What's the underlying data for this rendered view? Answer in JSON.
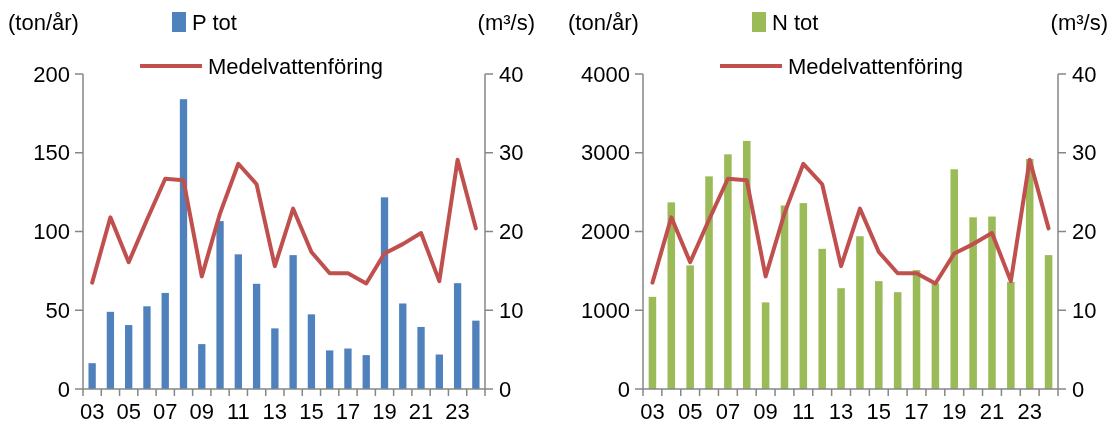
{
  "chart_data": [
    {
      "type": "bar",
      "ylabel": "(ton/år)",
      "y2label": "(m³/s)",
      "legend": "top",
      "categories": [
        "03",
        null,
        "05",
        null,
        "07",
        null,
        "09",
        null,
        "11",
        null,
        "13",
        null,
        "15",
        null,
        "17",
        null,
        "19",
        null,
        "21",
        null,
        "23",
        null
      ],
      "ylim": [
        0,
        200
      ],
      "yticks": [
        0,
        50,
        100,
        150,
        200
      ],
      "y2lim": [
        0,
        40
      ],
      "y2ticks": [
        0,
        10,
        20,
        30,
        40
      ],
      "series": [
        {
          "name": "P tot",
          "color": "#4f81bd",
          "values": [
            16.4,
            49,
            40.6,
            52.5,
            61,
            184,
            28.5,
            106.6,
            85.5,
            66.8,
            38.5,
            85,
            47.4,
            24.5,
            25.7,
            21.5,
            121.7,
            54.3,
            39.4,
            21.9,
            67.2,
            43.4
          ]
        },
        {
          "name": "Medelvattenföring",
          "type": "line",
          "axis": "y2",
          "color": "#c0504d",
          "values": [
            13.5,
            21.8,
            16.1,
            21.5,
            26.7,
            26.5,
            14.3,
            22.3,
            28.6,
            26,
            15.6,
            22.9,
            17.4,
            14.7,
            14.7,
            13.4,
            17.2,
            18.4,
            19.8,
            13.7,
            29.1,
            20.4
          ]
        }
      ]
    },
    {
      "type": "bar",
      "ylabel": "(ton/år)",
      "y2label": "(m³/s)",
      "legend": "top",
      "categories": [
        "03",
        null,
        "05",
        null,
        "07",
        null,
        "09",
        null,
        "11",
        null,
        "13",
        null,
        "15",
        null,
        "17",
        null,
        "19",
        null,
        "21",
        null,
        "23",
        null
      ],
      "ylim": [
        0,
        4000
      ],
      "yticks": [
        0,
        1000,
        2000,
        3000,
        4000
      ],
      "y2lim": [
        0,
        40
      ],
      "y2ticks": [
        0,
        10,
        20,
        30,
        40
      ],
      "series": [
        {
          "name": "N tot",
          "color": "#9bbb59",
          "values": [
            1170,
            2370,
            1570,
            2700,
            2980,
            3150,
            1100,
            2330,
            2360,
            1780,
            1280,
            1940,
            1370,
            1230,
            1510,
            1340,
            2790,
            2180,
            2190,
            1360,
            2920,
            1700
          ]
        },
        {
          "name": "Medelvattenföring",
          "type": "line",
          "axis": "y2",
          "color": "#c0504d",
          "values": [
            13.5,
            21.8,
            16.1,
            21.5,
            26.7,
            26.5,
            14.3,
            22.3,
            28.6,
            26,
            15.6,
            22.9,
            17.4,
            14.7,
            14.7,
            13.4,
            17.2,
            18.4,
            19.8,
            13.7,
            29.1,
            20.4
          ]
        }
      ]
    }
  ]
}
